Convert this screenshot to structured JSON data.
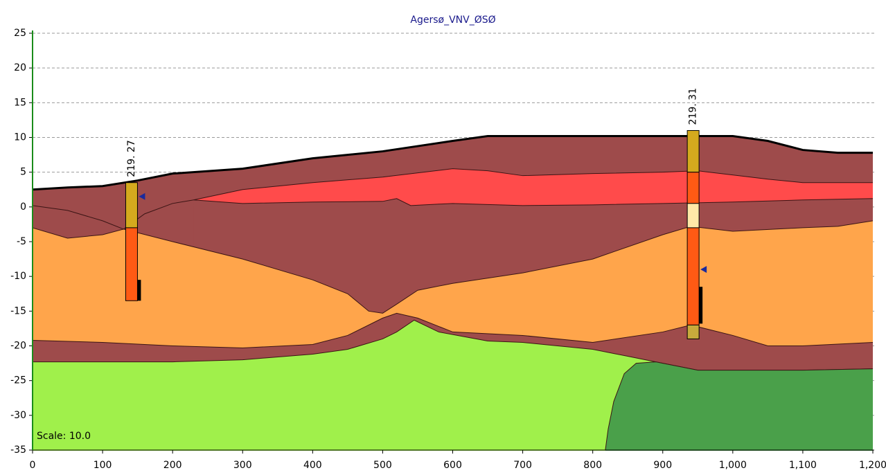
{
  "chart_data": {
    "type": "section",
    "title": "Agersø_VNV_ØSØ",
    "annotation": "Scale: 10.0",
    "xlim": [
      0,
      1200
    ],
    "ylim": [
      -35,
      25
    ],
    "xticks": [
      0,
      100,
      200,
      300,
      400,
      500,
      600,
      700,
      800,
      900,
      {
        "value": 1000,
        "label": "1,000"
      },
      {
        "value": 1100,
        "label": "1,100"
      },
      {
        "value": 1200,
        "label": "1,200"
      }
    ],
    "yticks": [
      -35,
      -30,
      -25,
      -20,
      -15,
      -10,
      -5,
      0,
      5,
      10,
      15,
      20,
      25
    ],
    "grid": true,
    "series": [
      {
        "color": "#9e4b4b",
        "x": [
          0,
          50,
          100,
          150,
          200,
          300,
          400,
          500,
          600,
          650,
          700,
          800,
          900,
          1000,
          1050,
          1100,
          1150,
          1200
        ],
        "values": [
          2.5,
          2.8,
          3,
          3.8,
          4.8,
          5.5,
          7,
          8,
          9.5,
          10.2,
          10.2,
          10.2,
          10.2,
          10.2,
          9.5,
          8.2,
          7.8,
          7.8
        ]
      },
      {
        "color": "#ff4b4b",
        "x": [
          230,
          300,
          400,
          500,
          600,
          650,
          700,
          800,
          900,
          950,
          1050,
          1100,
          1200
        ],
        "values": [
          1,
          2.5,
          3.5,
          4.3,
          5.5,
          5.2,
          4.5,
          4.8,
          5,
          5.2,
          4,
          3.5,
          3.5
        ]
      },
      {
        "color": "#9e4b4b",
        "x": [
          230,
          300,
          400,
          500,
          520,
          540,
          600,
          700,
          800,
          900,
          1000,
          1100,
          1200
        ],
        "values": [
          1,
          0.5,
          0.7,
          0.8,
          1.2,
          0.2,
          0.5,
          0.2,
          0.3,
          0.5,
          0.7,
          1,
          1.2
        ]
      },
      {
        "color": "#9e4b4b",
        "x": [
          0,
          50,
          100,
          130,
          160,
          200,
          230
        ],
        "values": [
          0.2,
          -0.5,
          -2,
          -3.2,
          -1,
          0.5,
          1
        ]
      },
      {
        "color": "#ffa54b",
        "x": [
          0,
          50,
          100,
          130,
          200,
          300,
          400,
          450,
          480,
          500,
          520,
          550,
          600,
          700,
          800,
          900,
          940,
          1000,
          1100,
          1150,
          1200
        ],
        "values": [
          -3,
          -4.5,
          -4,
          -3.2,
          -5,
          -7.5,
          -10.5,
          -12.5,
          -15,
          -15.3,
          -14,
          -12,
          -11,
          -9.5,
          -7.5,
          -4,
          -2.8,
          -3.5,
          -3,
          -2.8,
          -2
        ]
      },
      {
        "color": "#9e4b4b",
        "x": [
          0,
          100,
          200,
          300,
          400,
          450,
          500,
          520,
          550,
          600,
          700,
          800,
          900,
          940,
          1000,
          1050,
          1100,
          1200
        ],
        "values": [
          -19.2,
          -19.5,
          -20,
          -20.3,
          -19.8,
          -18.5,
          -16,
          -15.3,
          -16,
          -18,
          -18.5,
          -19.5,
          -18,
          -17,
          -18.5,
          -20,
          -20,
          -19.5
        ]
      },
      {
        "color": "#a0f04b",
        "x": [
          0,
          100,
          200,
          300,
          400,
          450,
          500,
          520,
          545,
          580,
          650,
          700,
          800,
          850,
          890,
          900,
          950,
          1000,
          1100,
          1200
        ],
        "values": [
          -22.3,
          -22.3,
          -22.3,
          -22,
          -21.2,
          -20.5,
          -19,
          -18,
          -16.3,
          -18,
          -19.3,
          -19.5,
          -20.5,
          -21.5,
          -22.3,
          -22.5,
          -23.5,
          -23.5,
          -23.5,
          -23.3
        ]
      },
      {
        "color": "#4aa04a",
        "x": [
          818,
          822,
          830,
          845,
          862,
          890,
          900,
          950,
          1100,
          1200
        ],
        "values": [
          -35,
          -32,
          -28,
          -24,
          -22.5,
          -22.3,
          -22.5,
          -23.5,
          -23.5,
          -23.3
        ]
      }
    ],
    "boreholes": [
      {
        "label": "219. 27",
        "x": 133,
        "water_level": 1.5,
        "screen": [
          -10.5,
          -13.5
        ],
        "intervals": [
          {
            "top": 3.5,
            "bottom": -3,
            "color": "#d4aa1e"
          },
          {
            "top": -3,
            "bottom": -13.5,
            "color": "#ff5a14"
          }
        ]
      },
      {
        "label": "219. 31",
        "x": 935,
        "water_level": -9,
        "screen": [
          -11.5,
          -16.8
        ],
        "intervals": [
          {
            "top": 11,
            "bottom": 5,
            "color": "#d4aa1e"
          },
          {
            "top": 5,
            "bottom": 0.5,
            "color": "#ff5a14"
          },
          {
            "top": 0.5,
            "bottom": -3,
            "color": "#ffe8a8"
          },
          {
            "top": -3,
            "bottom": -17,
            "color": "#ff5a14"
          },
          {
            "top": -17,
            "bottom": -19,
            "color": "#c8aa3c"
          }
        ]
      }
    ]
  }
}
